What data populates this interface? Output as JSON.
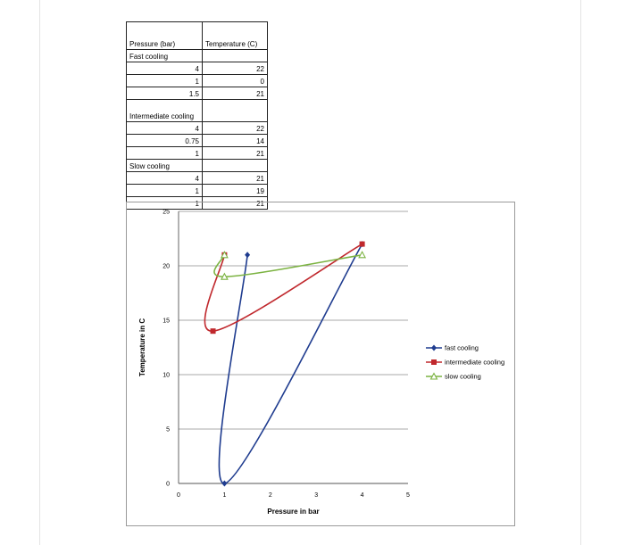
{
  "table": {
    "header_col1": "Pressure (bar)",
    "header_col2": "Temperature (C)",
    "groups": [
      {
        "label": "Fast cooling",
        "rows": [
          {
            "p": "4",
            "t": "22"
          },
          {
            "p": "1",
            "t": "0"
          },
          {
            "p": "1.5",
            "t": "21"
          }
        ]
      },
      {
        "label": "Intermediate cooling",
        "rows": [
          {
            "p": "4",
            "t": "22"
          },
          {
            "p": "0.75",
            "t": "14"
          },
          {
            "p": "1",
            "t": "21"
          }
        ]
      },
      {
        "label": "Slow cooling",
        "rows": [
          {
            "p": "4",
            "t": "21"
          },
          {
            "p": "1",
            "t": "19"
          },
          {
            "p": "1",
            "t": "21"
          }
        ]
      }
    ]
  },
  "chart_data": {
    "type": "scatter",
    "title": "",
    "xlabel": "Pressure in bar",
    "ylabel": "Temperature in C",
    "xlim": [
      0,
      5
    ],
    "ylim": [
      0,
      25
    ],
    "x_ticks": [
      "0",
      "1",
      "2",
      "3",
      "4",
      "5"
    ],
    "y_ticks": [
      "0",
      "5",
      "10",
      "15",
      "20",
      "25"
    ],
    "grid": "horizontal",
    "smoothed_lines": true,
    "legend_position": "right",
    "series": [
      {
        "name": "fast cooling",
        "color": "#1f3c8f",
        "marker": "diamond",
        "points": [
          [
            4,
            22
          ],
          [
            1,
            0
          ],
          [
            1.5,
            21
          ]
        ]
      },
      {
        "name": "intermediate cooling",
        "color": "#c0282d",
        "marker": "square",
        "points": [
          [
            4,
            22
          ],
          [
            0.75,
            14
          ],
          [
            1,
            21
          ]
        ]
      },
      {
        "name": "slow cooling",
        "color": "#7cb342",
        "marker": "triangle",
        "points": [
          [
            4,
            21
          ],
          [
            1,
            19
          ],
          [
            1,
            21
          ]
        ]
      }
    ]
  }
}
